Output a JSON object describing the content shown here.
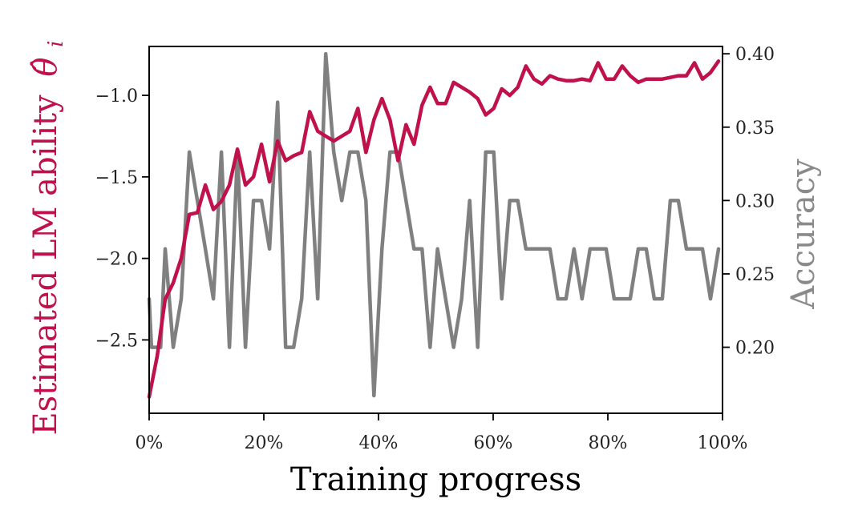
{
  "chart_data": {
    "type": "line",
    "xlabel": "Training progress",
    "ylabel_left_text": "Estimated LM ability",
    "ylabel_left_symbol": "θ̂",
    "ylabel_left_subscript": "i",
    "ylabel_right": "Accuracy",
    "colors": {
      "ability": "#c0114a",
      "accuracy": "#808080",
      "left_label": "#c0114a",
      "right_label": "#8a8a8a"
    },
    "x_ticks": [
      "0%",
      "20%",
      "40%",
      "60%",
      "80%",
      "100%"
    ],
    "y_left_ticks": [
      "−1.0",
      "−1.5",
      "−2.0",
      "−2.5"
    ],
    "y_right_ticks": [
      "0.40",
      "0.35",
      "0.30",
      "0.25",
      "0.20"
    ],
    "xlim": [
      0,
      100
    ],
    "ylim_left": [
      -2.95,
      -0.7
    ],
    "ylim_right": [
      0.155,
      0.405
    ],
    "series": [
      {
        "axis": "left",
        "x": [
          0,
          1.4,
          2.8,
          4.2,
          5.6,
          7,
          8.4,
          9.8,
          11.2,
          12.6,
          14,
          15.4,
          16.8,
          18.2,
          19.6,
          21,
          22.4,
          23.8,
          25.2,
          26.6,
          28,
          29.4,
          30.8,
          32.2,
          33.6,
          35,
          36.4,
          37.8,
          39.2,
          40.6,
          42,
          43.4,
          44.8,
          46.2,
          47.6,
          49,
          50.3,
          51.7,
          53.1,
          54.5,
          55.9,
          57.3,
          58.7,
          60.1,
          61.5,
          62.9,
          64.3,
          65.7,
          67.1,
          68.5,
          69.9,
          71.3,
          72.7,
          74.1,
          75.5,
          76.9,
          78.3,
          79.7,
          81.1,
          82.5,
          83.9,
          85.3,
          86.7,
          88.1,
          89.5,
          90.9,
          92.3,
          93.7,
          95.1,
          96.5,
          97.9,
          99.3
        ],
        "values": [
          -2.85,
          -2.6,
          -2.25,
          -2.15,
          -2.0,
          -1.73,
          -1.72,
          -1.55,
          -1.7,
          -1.65,
          -1.55,
          -1.33,
          -1.55,
          -1.5,
          -1.3,
          -1.53,
          -1.28,
          -1.4,
          -1.37,
          -1.35,
          -1.1,
          -1.22,
          -1.25,
          -1.28,
          -1.25,
          -1.22,
          -1.08,
          -1.35,
          -1.15,
          -1.02,
          -1.15,
          -1.4,
          -1.18,
          -1.3,
          -1.06,
          -0.95,
          -1.05,
          -1.05,
          -0.92,
          -0.95,
          -0.98,
          -1.02,
          -1.12,
          -1.08,
          -0.96,
          -1.0,
          -0.95,
          -0.82,
          -0.9,
          -0.93,
          -0.88,
          -0.9,
          -0.91,
          -0.91,
          -0.9,
          -0.91,
          -0.8,
          -0.9,
          -0.9,
          -0.82,
          -0.88,
          -0.92,
          -0.9,
          -0.9,
          -0.9,
          -0.89,
          -0.88,
          -0.88,
          -0.8,
          -0.9,
          -0.86,
          -0.79
        ]
      },
      {
        "axis": "right",
        "x": [
          0,
          0.4,
          2,
          2.8,
          4.2,
          5.6,
          7,
          8.4,
          9.8,
          11.2,
          12.6,
          14,
          15.4,
          16.8,
          18.2,
          19.6,
          21,
          22.4,
          23.8,
          25.2,
          26.6,
          28,
          29.4,
          30.8,
          32.2,
          33.6,
          35,
          36.4,
          37.8,
          39.2,
          40.6,
          42,
          43.4,
          44.8,
          46.2,
          47.6,
          49,
          50.3,
          51.7,
          53.1,
          54.5,
          55.9,
          57.3,
          58.7,
          60.1,
          61.5,
          62.9,
          64.3,
          65.7,
          67.1,
          68.5,
          69.9,
          71.3,
          72.7,
          74.1,
          75.5,
          76.9,
          78.3,
          79.7,
          81.1,
          82.5,
          83.9,
          85.3,
          86.7,
          88.1,
          89.5,
          90.9,
          92.3,
          93.7,
          95.1,
          96.5,
          97.9,
          99.3
        ],
        "values": [
          0.233,
          0.2,
          0.2,
          0.267,
          0.2,
          0.233,
          0.333,
          0.3,
          0.267,
          0.233,
          0.333,
          0.2,
          0.333,
          0.2,
          0.3,
          0.3,
          0.267,
          0.367,
          0.2,
          0.2,
          0.233,
          0.333,
          0.233,
          0.4,
          0.333,
          0.3,
          0.333,
          0.333,
          0.3,
          0.167,
          0.267,
          0.333,
          0.333,
          0.3,
          0.267,
          0.267,
          0.2,
          0.267,
          0.233,
          0.2,
          0.233,
          0.3,
          0.2,
          0.333,
          0.333,
          0.233,
          0.3,
          0.3,
          0.267,
          0.267,
          0.267,
          0.267,
          0.233,
          0.233,
          0.267,
          0.233,
          0.267,
          0.267,
          0.267,
          0.233,
          0.233,
          0.233,
          0.267,
          0.267,
          0.233,
          0.233,
          0.3,
          0.3,
          0.267,
          0.267,
          0.267,
          0.233,
          0.267
        ]
      }
    ]
  }
}
